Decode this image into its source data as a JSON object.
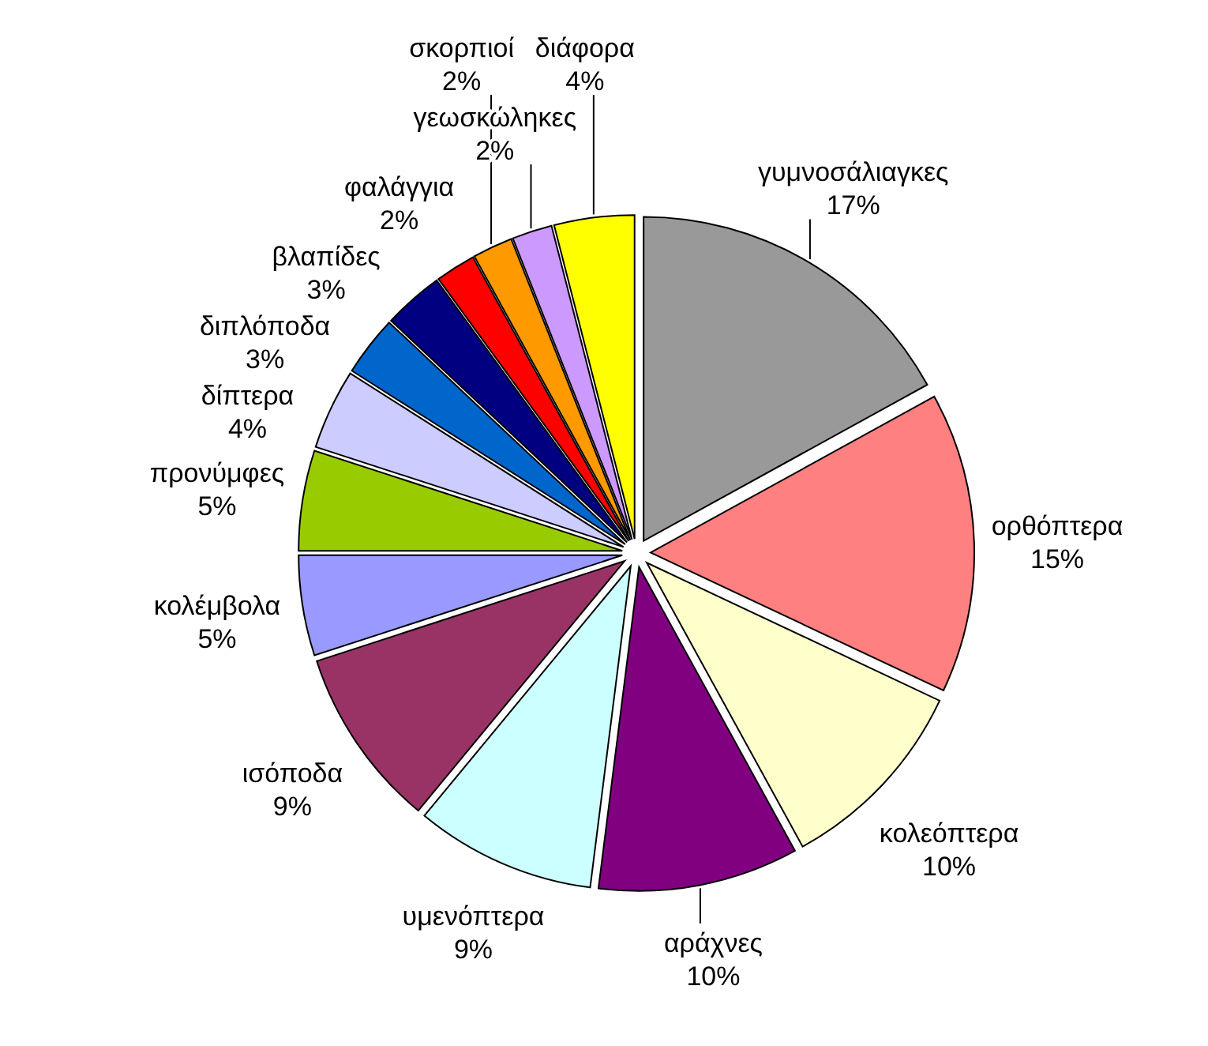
{
  "chart_data": {
    "type": "pie",
    "categories": [
      "γυμνοσάλιαγκες",
      "ορθόπτερα",
      "κολεόπτερα",
      "αράχνες",
      "υμενόπτερα",
      "ισόποδα",
      "κολέμβολα",
      "προνύμφες",
      "δίπτερα",
      "διπλόποδα",
      "βλαπίδες",
      "φαλάγγια",
      "σκορπιοί",
      "γεωσκώληκες",
      "διάφορα"
    ],
    "values": [
      17,
      15,
      10,
      10,
      9,
      9,
      5,
      5,
      4,
      3,
      3,
      2,
      2,
      2,
      4
    ],
    "value_labels": [
      "17%",
      "15%",
      "10%",
      "10%",
      "9%",
      "9%",
      "5%",
      "5%",
      "4%",
      "3%",
      "3%",
      "2%",
      "2%",
      "2%",
      "4%"
    ],
    "colors": [
      "#999999",
      "#ff8080",
      "#ffffcc",
      "#800080",
      "#ccffff",
      "#993366",
      "#9999ff",
      "#99cc00",
      "#ccccff",
      "#0066cc",
      "#000080",
      "#ff0000",
      "#ff9900",
      "#cc99ff",
      "#ffff00"
    ]
  }
}
